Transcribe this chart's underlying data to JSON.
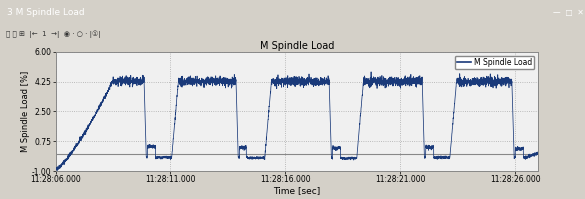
{
  "title": "M Spindle Load",
  "xlabel": "Time [sec]",
  "ylabel": "M Spindle Load [%]",
  "legend_label": "M Spindle Load",
  "ylim": [
    -1.0,
    6.0
  ],
  "yticks": [
    -1.0,
    0.75,
    2.5,
    4.25,
    6.0
  ],
  "ytick_labels": [
    "-1.00",
    "0.75",
    "2.50",
    "4.25",
    "6.00"
  ],
  "xlim_start": 0,
  "xlim_end": 21,
  "xtick_positions": [
    0,
    5,
    10,
    15,
    20
  ],
  "xtick_labels": [
    "11:28:06.000",
    "11:28:11.000",
    "11:28:16.000",
    "11:28:21.000",
    "11:28:26.000"
  ],
  "line_color": "#1a3a7a",
  "plot_bg": "#f2f2f2",
  "window_bg": "#d4d0c8",
  "titlebar_bg": "#3a5a8a",
  "toolbar_bg": "#ece9d8",
  "hline_color": "#888888",
  "grid_color": "#aaaaaa",
  "frame_bg": "#d9d9d9",
  "plot_area_bg": "#f0f0f0"
}
